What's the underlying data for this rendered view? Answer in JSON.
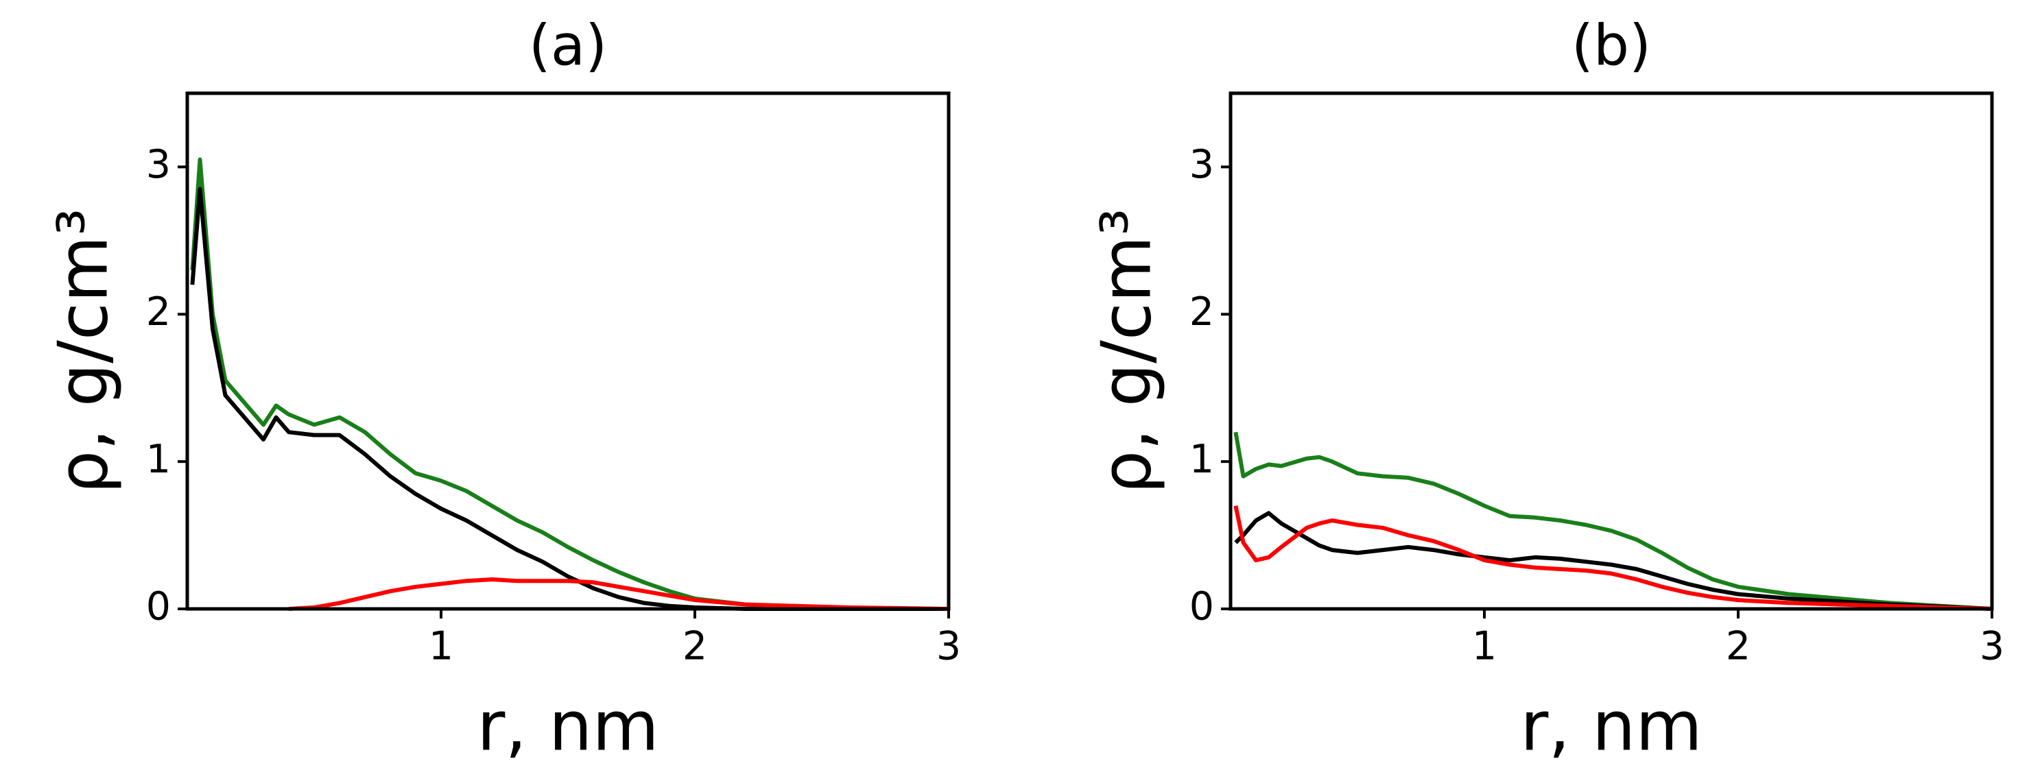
{
  "chart_data": [
    {
      "type": "line",
      "title": "(a)",
      "x_label": "r, nm",
      "y_label": "ρ, g/cm³",
      "x": [
        0.02,
        0.05,
        0.1,
        0.15,
        0.2,
        0.3,
        0.35,
        0.4,
        0.5,
        0.6,
        0.7,
        0.8,
        0.9,
        1.0,
        1.1,
        1.2,
        1.3,
        1.4,
        1.5,
        1.6,
        1.7,
        1.8,
        1.9,
        2.0,
        2.2,
        2.4,
        2.6,
        2.8,
        3.0
      ],
      "series": [
        {
          "color": "#1a7f1a",
          "values": [
            2.3,
            3.05,
            2.0,
            1.55,
            1.45,
            1.25,
            1.38,
            1.32,
            1.25,
            1.3,
            1.2,
            1.05,
            0.92,
            0.87,
            0.8,
            0.7,
            0.6,
            0.52,
            0.42,
            0.33,
            0.25,
            0.18,
            0.12,
            0.07,
            0.03,
            0.01,
            0.005,
            0,
            0
          ]
        },
        {
          "color": "#000000",
          "values": [
            2.2,
            2.85,
            1.9,
            1.45,
            1.35,
            1.15,
            1.3,
            1.2,
            1.18,
            1.18,
            1.05,
            0.9,
            0.78,
            0.68,
            0.6,
            0.5,
            0.4,
            0.32,
            0.22,
            0.14,
            0.08,
            0.04,
            0.02,
            0.01,
            0,
            0,
            0,
            0,
            0
          ]
        },
        {
          "color": "#ff0000",
          "values": [
            null,
            null,
            null,
            null,
            null,
            null,
            null,
            0,
            0.01,
            0.04,
            0.08,
            0.12,
            0.15,
            0.17,
            0.19,
            0.2,
            0.19,
            0.19,
            0.19,
            0.18,
            0.15,
            0.12,
            0.09,
            0.06,
            0.03,
            0.02,
            0.01,
            0.005,
            0
          ]
        }
      ],
      "xlim": [
        0,
        3
      ],
      "ylim": [
        0,
        3.5
      ],
      "xticks": [
        1,
        2,
        3
      ],
      "yticks": [
        0,
        1,
        2,
        3
      ]
    },
    {
      "type": "line",
      "title": "(b)",
      "x_label": "r, nm",
      "y_label": "ρ, g/cm³",
      "x": [
        0.02,
        0.05,
        0.1,
        0.15,
        0.2,
        0.3,
        0.35,
        0.4,
        0.5,
        0.6,
        0.7,
        0.8,
        0.9,
        1.0,
        1.1,
        1.2,
        1.3,
        1.4,
        1.5,
        1.6,
        1.7,
        1.8,
        1.9,
        2.0,
        2.2,
        2.4,
        2.6,
        2.8,
        3.0
      ],
      "series": [
        {
          "color": "#1a7f1a",
          "values": [
            1.2,
            0.9,
            0.95,
            0.98,
            0.97,
            1.02,
            1.03,
            1.0,
            0.92,
            0.9,
            0.89,
            0.85,
            0.78,
            0.7,
            0.63,
            0.62,
            0.6,
            0.57,
            0.53,
            0.47,
            0.38,
            0.28,
            0.2,
            0.15,
            0.1,
            0.07,
            0.04,
            0.02,
            0
          ]
        },
        {
          "color": "#000000",
          "values": [
            0.45,
            0.5,
            0.6,
            0.65,
            0.58,
            0.48,
            0.43,
            0.4,
            0.38,
            0.4,
            0.42,
            0.4,
            0.37,
            0.35,
            0.33,
            0.35,
            0.34,
            0.32,
            0.3,
            0.27,
            0.22,
            0.17,
            0.13,
            0.1,
            0.07,
            0.05,
            0.03,
            0.015,
            0
          ]
        },
        {
          "color": "#ff0000",
          "values": [
            0.7,
            0.45,
            0.33,
            0.35,
            0.42,
            0.55,
            0.58,
            0.6,
            0.57,
            0.55,
            0.5,
            0.46,
            0.4,
            0.33,
            0.3,
            0.28,
            0.27,
            0.26,
            0.24,
            0.2,
            0.15,
            0.11,
            0.08,
            0.06,
            0.04,
            0.03,
            0.02,
            0.01,
            0
          ]
        }
      ],
      "xlim": [
        0,
        3
      ],
      "ylim": [
        0,
        3.5
      ],
      "xticks": [
        1,
        2,
        3
      ],
      "yticks": [
        0,
        1,
        2,
        3
      ]
    }
  ]
}
